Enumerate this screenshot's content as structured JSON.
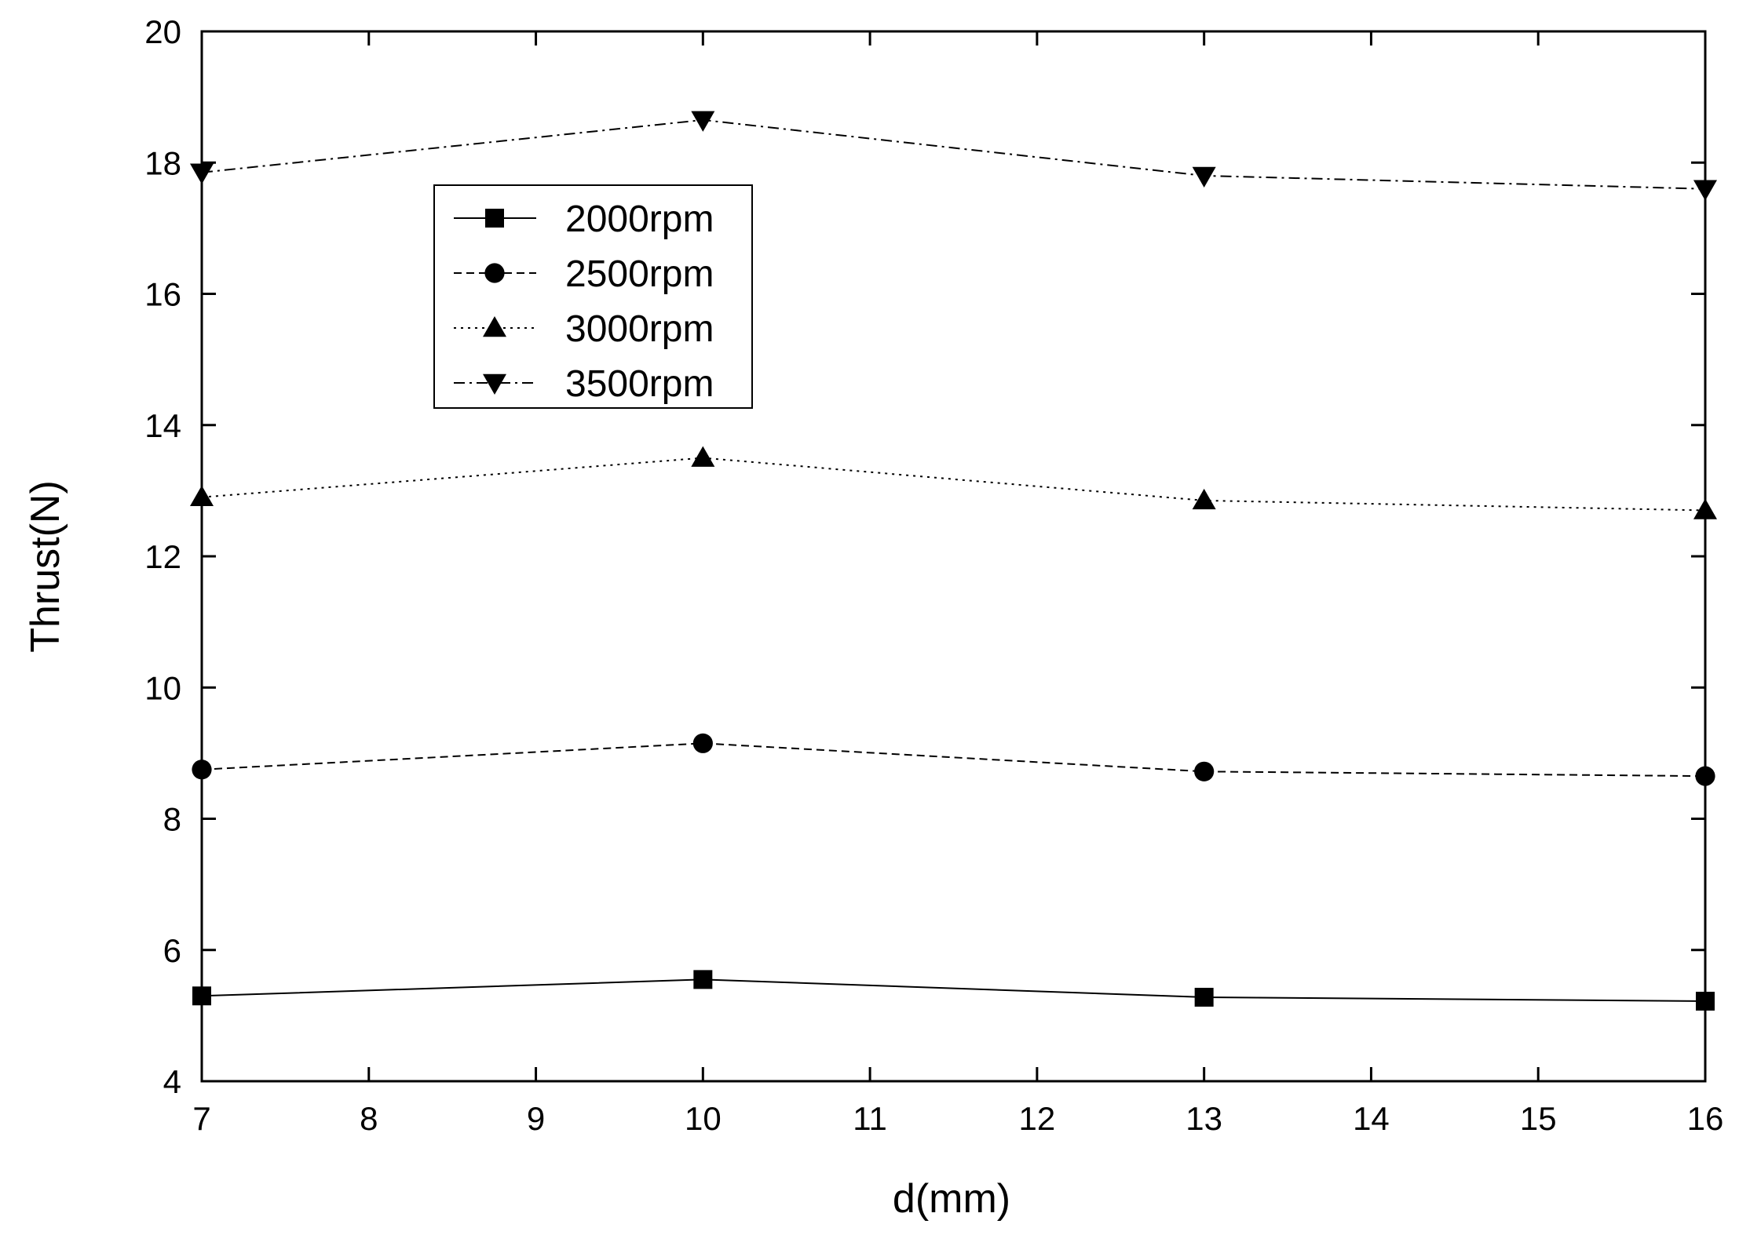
{
  "chart_data": {
    "type": "line",
    "xlabel": "d(mm)",
    "ylabel": "Thrust(N)",
    "xlim": [
      7,
      16
    ],
    "ylim": [
      4,
      20
    ],
    "xticks": [
      "7",
      "8",
      "9",
      "10",
      "11",
      "12",
      "13",
      "14",
      "15",
      "16"
    ],
    "yticks": [
      "4",
      "6",
      "8",
      "10",
      "12",
      "14",
      "16",
      "18",
      "20"
    ],
    "x": [
      7,
      10,
      13,
      16
    ],
    "series": [
      {
        "name": "2000rpm",
        "marker": "square",
        "dash": "solid",
        "color": "#000000",
        "values": [
          5.3,
          5.55,
          5.28,
          5.22
        ]
      },
      {
        "name": "2500rpm",
        "marker": "circle",
        "dash": "dashed",
        "color": "#000000",
        "values": [
          8.75,
          9.15,
          8.72,
          8.65
        ]
      },
      {
        "name": "3000rpm",
        "marker": "triangle-up",
        "dash": "dotted",
        "color": "#000000",
        "values": [
          12.9,
          13.5,
          12.85,
          12.7
        ]
      },
      {
        "name": "3500rpm",
        "marker": "triangle-down",
        "dash": "dash-dot",
        "color": "#000000",
        "values": [
          17.85,
          18.65,
          17.8,
          17.6
        ]
      }
    ],
    "legend": "top-left",
    "grid": false
  }
}
